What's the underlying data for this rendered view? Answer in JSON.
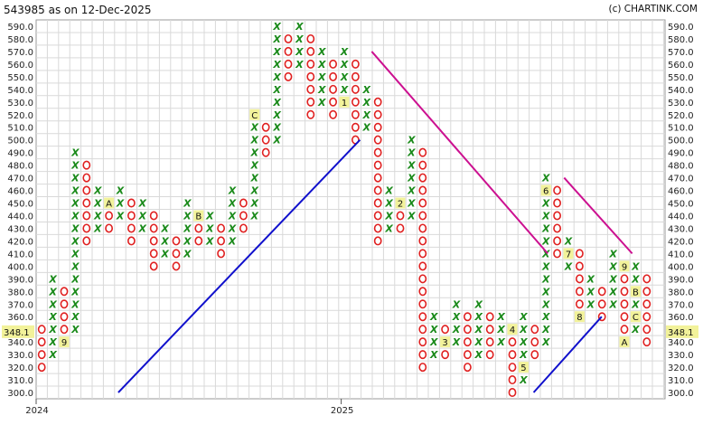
{
  "header": {
    "title": "543985 as on 12-Dec-2025",
    "brand": "(c) CHARTINK.COM"
  },
  "chart_data": {
    "type": "point-and-figure",
    "box_size": 10,
    "ylim": [
      300,
      590
    ],
    "y_ticks": [
      590,
      580,
      570,
      560,
      550,
      540,
      530,
      520,
      510,
      500,
      490,
      480,
      470,
      460,
      450,
      440,
      430,
      420,
      410,
      400,
      390,
      380,
      370,
      360,
      350,
      340,
      330,
      320,
      310,
      300
    ],
    "year_labels": [
      {
        "label": "2024",
        "column": 0
      },
      {
        "label": "2025",
        "column": 13
      }
    ],
    "last_price": "348.1",
    "colors": {
      "x": "#1a8a1a",
      "o": "#e02020",
      "support": "#1010cc",
      "resistance": "#cc1090",
      "marker_bg": "#f2f29a",
      "price_bg": "#f2f29a"
    },
    "columns": [
      {
        "type": "O",
        "high": 350,
        "low": 320,
        "markers": []
      },
      {
        "type": "X",
        "high": 390,
        "low": 330,
        "markers": []
      },
      {
        "type": "O",
        "high": 380,
        "low": 340,
        "markers": [
          {
            "price": 340,
            "label": "9"
          }
        ]
      },
      {
        "type": "X",
        "high": 490,
        "low": 350,
        "markers": []
      },
      {
        "type": "O",
        "high": 480,
        "low": 420,
        "markers": []
      },
      {
        "type": "X",
        "high": 460,
        "low": 430,
        "markers": []
      },
      {
        "type": "O",
        "high": 450,
        "low": 430,
        "markers": [
          {
            "price": 450,
            "label": "A"
          }
        ]
      },
      {
        "type": "X",
        "high": 460,
        "low": 440,
        "markers": []
      },
      {
        "type": "O",
        "high": 450,
        "low": 420,
        "markers": []
      },
      {
        "type": "X",
        "high": 450,
        "low": 430,
        "markers": []
      },
      {
        "type": "O",
        "high": 440,
        "low": 400,
        "markers": []
      },
      {
        "type": "X",
        "high": 430,
        "low": 410,
        "markers": []
      },
      {
        "type": "O",
        "high": 420,
        "low": 400,
        "markers": []
      },
      {
        "type": "X",
        "high": 450,
        "low": 410,
        "markers": []
      },
      {
        "type": "O",
        "high": 440,
        "low": 420,
        "markers": [
          {
            "price": 440,
            "label": "B"
          }
        ]
      },
      {
        "type": "X",
        "high": 440,
        "low": 420,
        "markers": []
      },
      {
        "type": "O",
        "high": 430,
        "low": 410,
        "markers": []
      },
      {
        "type": "X",
        "high": 460,
        "low": 420,
        "markers": []
      },
      {
        "type": "O",
        "high": 450,
        "low": 430,
        "markers": []
      },
      {
        "type": "X",
        "high": 520,
        "low": 440,
        "markers": [
          {
            "price": 520,
            "label": "C"
          }
        ]
      },
      {
        "type": "O",
        "high": 510,
        "low": 490,
        "markers": []
      },
      {
        "type": "X",
        "high": 590,
        "low": 500,
        "markers": []
      },
      {
        "type": "O",
        "high": 580,
        "low": 550,
        "markers": []
      },
      {
        "type": "X",
        "high": 590,
        "low": 560,
        "markers": []
      },
      {
        "type": "O",
        "high": 580,
        "low": 520,
        "markers": []
      },
      {
        "type": "X",
        "high": 570,
        "low": 530,
        "markers": []
      },
      {
        "type": "O",
        "high": 560,
        "low": 520,
        "markers": []
      },
      {
        "type": "X",
        "high": 570,
        "low": 530,
        "markers": [
          {
            "price": 530,
            "label": "1"
          }
        ]
      },
      {
        "type": "O",
        "high": 560,
        "low": 500,
        "markers": []
      },
      {
        "type": "X",
        "high": 540,
        "low": 510,
        "markers": []
      },
      {
        "type": "O",
        "high": 530,
        "low": 420,
        "markers": []
      },
      {
        "type": "X",
        "high": 460,
        "low": 430,
        "markers": []
      },
      {
        "type": "O",
        "high": 450,
        "low": 430,
        "markers": [
          {
            "price": 450,
            "label": "2"
          }
        ]
      },
      {
        "type": "X",
        "high": 500,
        "low": 440,
        "markers": []
      },
      {
        "type": "O",
        "high": 490,
        "low": 320,
        "markers": []
      },
      {
        "type": "X",
        "high": 360,
        "low": 330,
        "markers": []
      },
      {
        "type": "O",
        "high": 350,
        "low": 330,
        "markers": [
          {
            "price": 340,
            "label": "3"
          }
        ]
      },
      {
        "type": "X",
        "high": 370,
        "low": 340,
        "markers": []
      },
      {
        "type": "O",
        "high": 360,
        "low": 320,
        "markers": []
      },
      {
        "type": "X",
        "high": 370,
        "low": 330,
        "markers": []
      },
      {
        "type": "O",
        "high": 360,
        "low": 330,
        "markers": []
      },
      {
        "type": "X",
        "high": 360,
        "low": 340,
        "markers": []
      },
      {
        "type": "O",
        "high": 350,
        "low": 300,
        "markers": [
          {
            "price": 350,
            "label": "4"
          }
        ]
      },
      {
        "type": "X",
        "high": 360,
        "low": 310,
        "markers": [
          {
            "price": 320,
            "label": "5"
          }
        ]
      },
      {
        "type": "O",
        "high": 350,
        "low": 330,
        "markers": []
      },
      {
        "type": "X",
        "high": 470,
        "low": 340,
        "markers": [
          {
            "price": 460,
            "label": "6"
          }
        ]
      },
      {
        "type": "O",
        "high": 460,
        "low": 410,
        "markers": []
      },
      {
        "type": "X",
        "high": 420,
        "low": 400,
        "markers": [
          {
            "price": 410,
            "label": "7"
          }
        ]
      },
      {
        "type": "O",
        "high": 410,
        "low": 360,
        "markers": [
          {
            "price": 360,
            "label": "8"
          }
        ]
      },
      {
        "type": "X",
        "high": 390,
        "low": 370,
        "markers": []
      },
      {
        "type": "O",
        "high": 380,
        "low": 360,
        "markers": []
      },
      {
        "type": "X",
        "high": 410,
        "low": 370,
        "markers": []
      },
      {
        "type": "O",
        "high": 400,
        "low": 340,
        "markers": [
          {
            "price": 400,
            "label": "9"
          },
          {
            "price": 340,
            "label": "A"
          }
        ]
      },
      {
        "type": "X",
        "high": 400,
        "low": 350,
        "markers": [
          {
            "price": 380,
            "label": "B"
          },
          {
            "price": 360,
            "label": "C"
          }
        ]
      },
      {
        "type": "O",
        "high": 390,
        "low": 340,
        "markers": []
      }
    ],
    "trendlines": [
      {
        "kind": "support",
        "from": {
          "column": 3.5,
          "price": 300
        },
        "to": {
          "column": 13.8,
          "price": 500
        }
      },
      {
        "kind": "resistance",
        "from": {
          "column": 14.3,
          "price": 570
        },
        "to": {
          "column": 21.8,
          "price": 410
        }
      },
      {
        "kind": "support",
        "from": {
          "column": 21.2,
          "price": 300
        },
        "to": {
          "column": 24.1,
          "price": 360
        }
      },
      {
        "kind": "resistance",
        "from": {
          "column": 22.5,
          "price": 470
        },
        "to": {
          "column": 25.4,
          "price": 410
        }
      }
    ]
  }
}
